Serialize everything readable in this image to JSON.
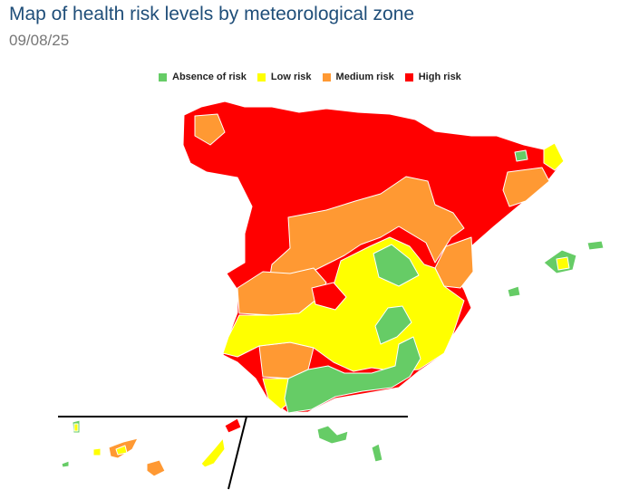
{
  "header": {
    "title": "Map of health risk levels by meteorological zone",
    "date": "09/08/25"
  },
  "legend": [
    {
      "label": "Absence of risk",
      "color": "#66cc66"
    },
    {
      "label": "Low risk",
      "color": "#ffff00"
    },
    {
      "label": "Medium risk",
      "color": "#ff9933"
    },
    {
      "label": "High risk",
      "color": "#ff0000"
    }
  ],
  "colors": {
    "high": "#ff0000",
    "medium": "#ff9933",
    "low": "#ffff00",
    "absence": "#66cc66",
    "border": "#ffffff",
    "divider": "#000000"
  }
}
